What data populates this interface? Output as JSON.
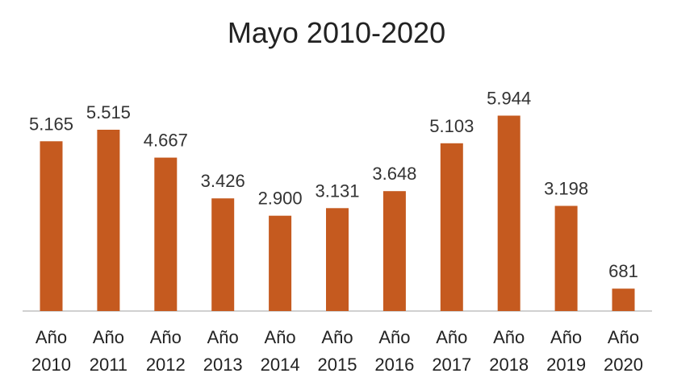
{
  "chart_data": {
    "type": "bar",
    "title": "Mayo 2010-2020",
    "categories": [
      [
        "Año",
        "2010"
      ],
      [
        "Año",
        "2011"
      ],
      [
        "Año",
        "2012"
      ],
      [
        "Año",
        "2013"
      ],
      [
        "Año",
        "2014"
      ],
      [
        "Año",
        "2015"
      ],
      [
        "Año",
        "2016"
      ],
      [
        "Año",
        "2017"
      ],
      [
        "Año",
        "2018"
      ],
      [
        "Año",
        "2019"
      ],
      [
        "Año",
        "2020"
      ]
    ],
    "values": [
      5165,
      5515,
      4667,
      3426,
      2900,
      3131,
      3648,
      5103,
      5944,
      3198,
      681
    ],
    "data_labels": [
      "5.165",
      "5.515",
      "4.667",
      "3.426",
      "2.900",
      "3.131",
      "3.648",
      "5.103",
      "5.944",
      "3.198",
      "681"
    ],
    "xlabel": "",
    "ylabel": "",
    "ylim": [
      0,
      6500
    ],
    "grid": false,
    "legend": "none",
    "bar_color": "#C55A1F",
    "axis_color": "#D0D0D0"
  }
}
